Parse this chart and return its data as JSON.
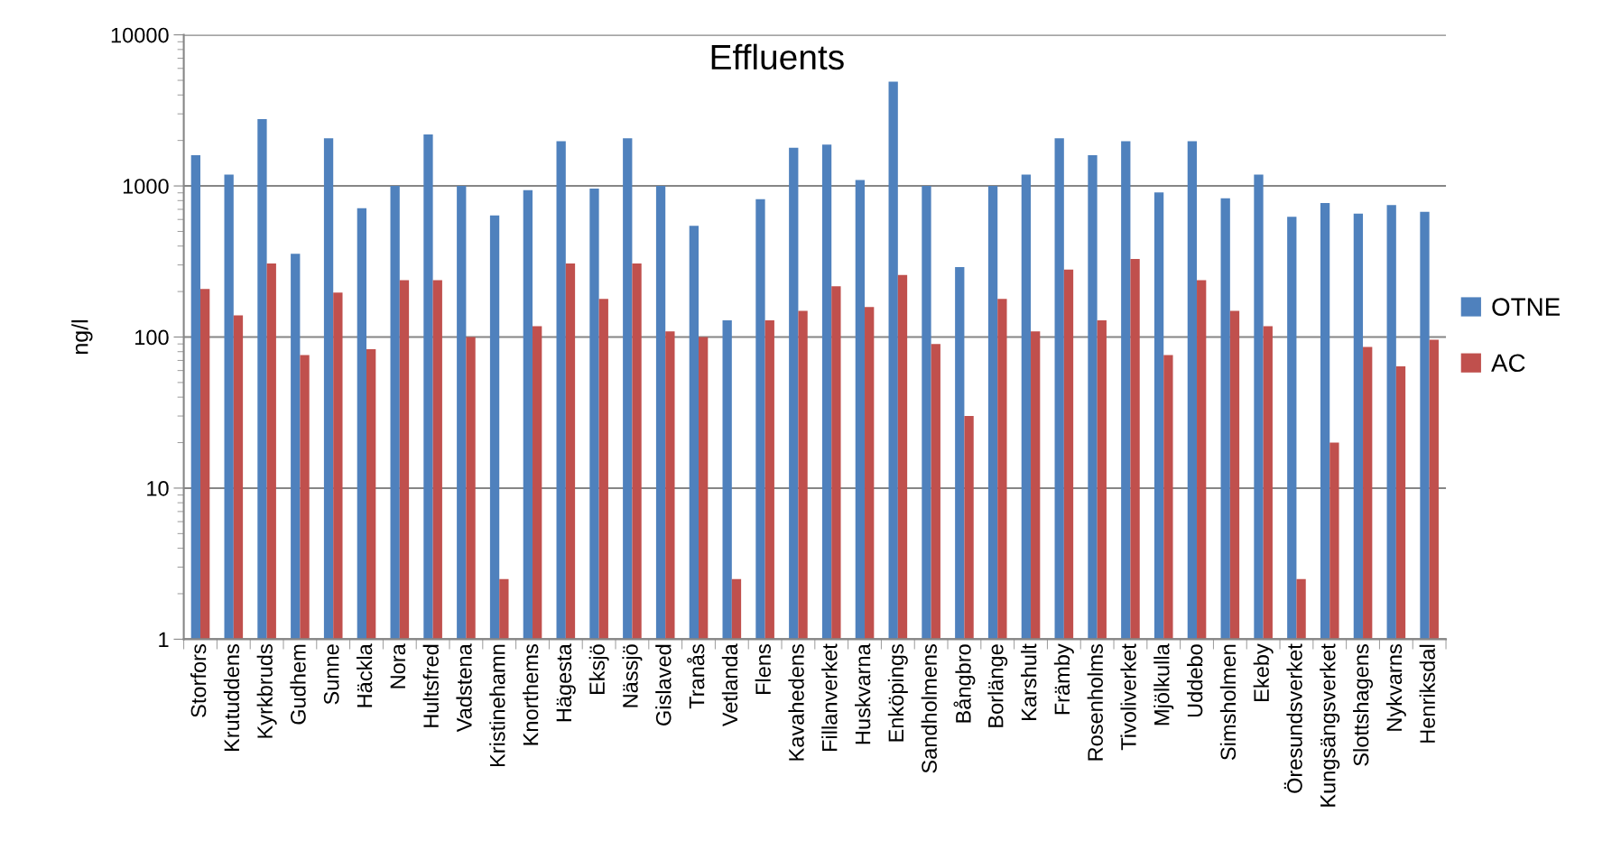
{
  "chart_data": {
    "type": "bar",
    "title": "Effluents",
    "ylabel": "ng/l",
    "categories": [
      "Storfors",
      "Krutuddens",
      "Kyrkbruds",
      "Gudhem",
      "Sunne",
      "Häckla",
      "Nora",
      "Hultsfred",
      "Vadstena",
      "Kristinehamn",
      "Knorthems",
      "Hägesta",
      "Eksjö",
      "Nässjö",
      "Gislaved",
      "Tranås",
      "Vetlanda",
      "Flens",
      "Kavahedens",
      "Fillanverket",
      "Huskvarna",
      "Enköpings",
      "Sandholmens",
      "Bångbro",
      "Borlänge",
      "Karshult",
      "Främby",
      "Rosenholms",
      "Tivoliverket",
      "Mjölkulla",
      "Uddebo",
      "Simsholmen",
      "Ekeby",
      "Öresundsverket",
      "Kungsängsverket",
      "Slottshagens",
      "Nykvarns",
      "Henriksdal"
    ],
    "series": [
      {
        "name": "OTNE",
        "color": "#4f81bd",
        "values": [
          1600,
          1190,
          2770,
          355,
          2070,
          713,
          1000,
          2190,
          1000,
          638,
          936,
          1980,
          960,
          2070,
          1000,
          545,
          129,
          818,
          1790,
          1880,
          1095,
          4900,
          1000,
          290,
          1000,
          1190,
          2070,
          1600,
          1980,
          907,
          1980,
          829,
          1190,
          624,
          770,
          655,
          748,
          675
        ]
      },
      {
        "name": "AC",
        "color": "#c0504d",
        "values": [
          208,
          139,
          307,
          76,
          197,
          83,
          238,
          238,
          100,
          2.5,
          118,
          307,
          179,
          307,
          109,
          100,
          2.5,
          129,
          149,
          217,
          158,
          257,
          90,
          30,
          179,
          109,
          280,
          129,
          328,
          76,
          238,
          149,
          118,
          2.5,
          20,
          86,
          64,
          96
        ]
      }
    ],
    "log": "y",
    "ylim": [
      1,
      10000
    ],
    "yticks": [
      1,
      10,
      100,
      1000,
      10000
    ],
    "grid": "y",
    "legend": "right"
  }
}
